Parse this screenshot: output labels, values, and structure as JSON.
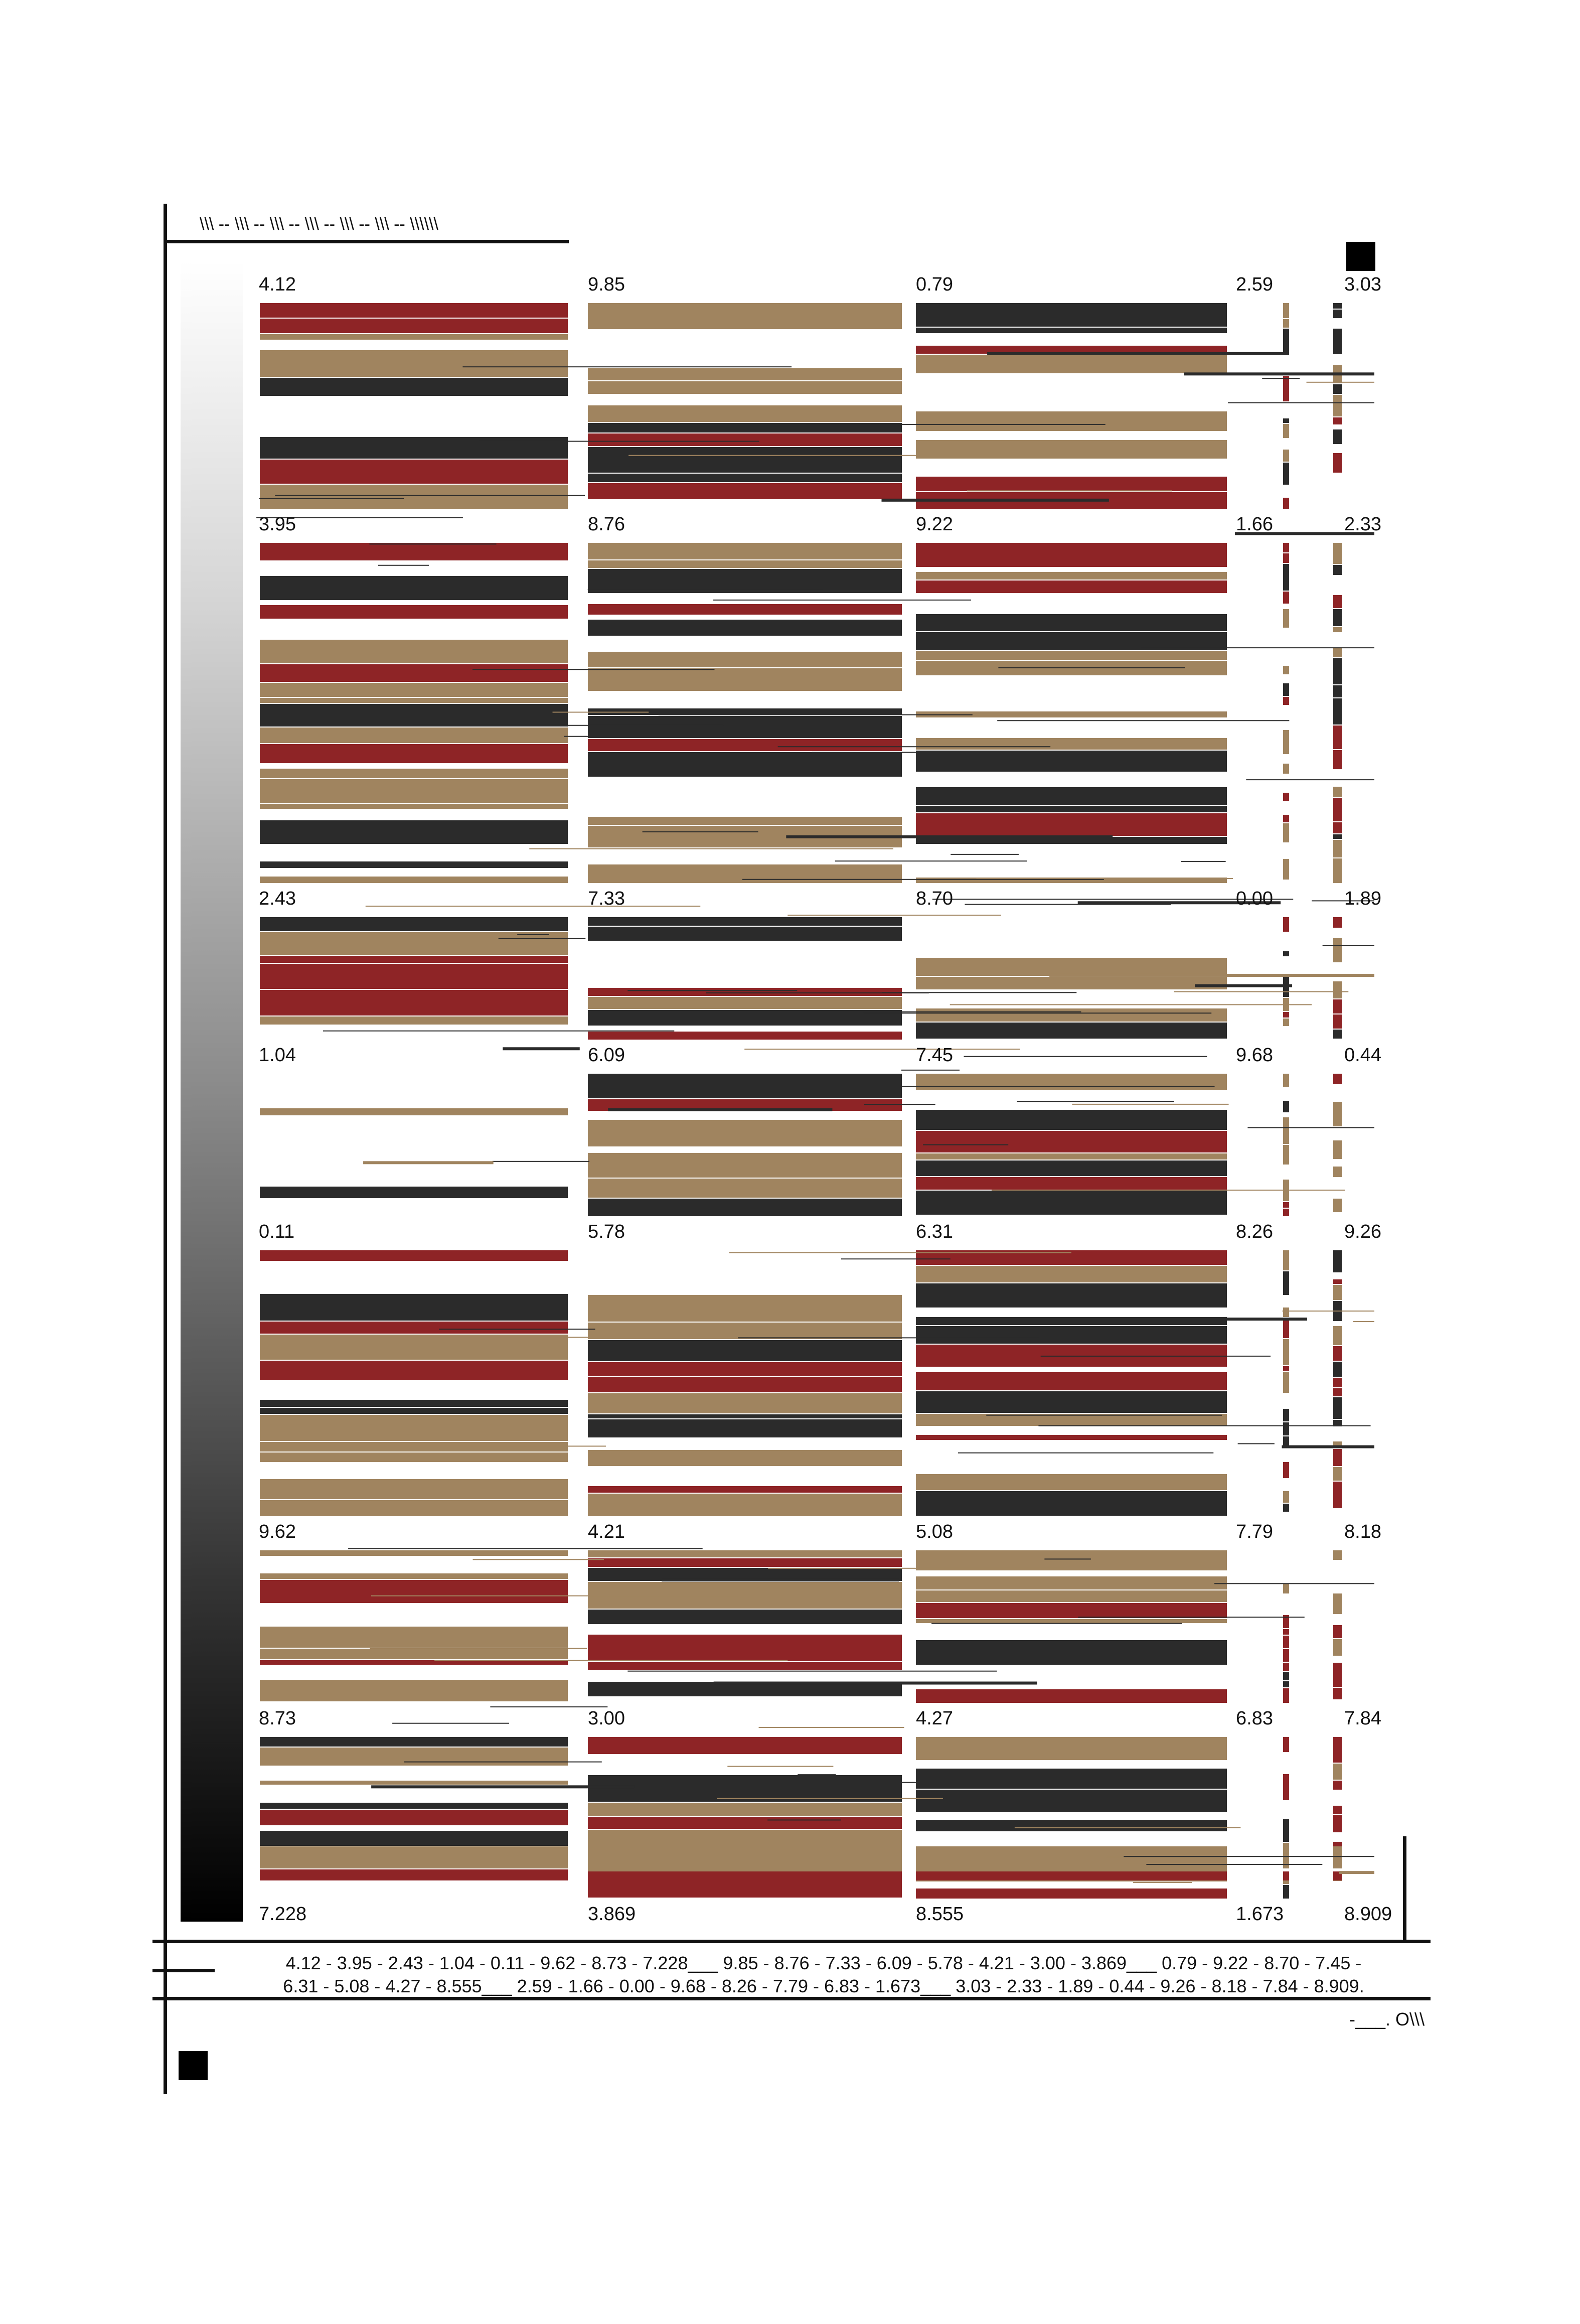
{
  "header_text": "\\\\\\ -- \\\\\\ -- \\\\\\ -- \\\\\\ -- \\\\\\ -- \\\\\\ -- \\\\\\\\\\\\",
  "signature": "-___. O\\\\\\",
  "summary_line_1": "4.12 - 3.95 - 2.43 - 1.04 - 0.11 - 9.62 - 8.73 - 7.228___ 9.85 - 8.76 - 7.33 - 6.09 - 5.78 - 4.21 - 3.00 - 3.869___ 0.79 - 9.22 - 8.70 - 7.45 -",
  "summary_line_2": "6.31 - 5.08 - 4.27 - 8.555___ 2.59 - 1.66 - 0.00 - 9.68 - 8.26 - 7.79 - 6.83 - 1.673___ 3.03 - 2.33 - 1.89 - 0.44 - 9.26 - 8.18 - 7.84 - 8.909.",
  "colors": {
    "red": "#8e2426",
    "tan": "#a0845f",
    "dark": "#2b2b2b",
    "ink": "#111111"
  },
  "columns": [
    {
      "values": [
        "4.12",
        "3.95",
        "2.43",
        "1.04",
        "0.11",
        "9.62",
        "8.73",
        "7.228"
      ]
    },
    {
      "values": [
        "9.85",
        "8.76",
        "7.33",
        "6.09",
        "5.78",
        "4.21",
        "3.00",
        "3.869"
      ]
    },
    {
      "values": [
        "0.79",
        "9.22",
        "8.70",
        "7.45",
        "6.31",
        "5.08",
        "4.27",
        "8.555"
      ]
    },
    {
      "values": [
        "2.59",
        "1.66",
        "0.00",
        "9.68",
        "8.26",
        "7.79",
        "6.83",
        "1.673"
      ]
    },
    {
      "values": [
        "3.03",
        "2.33",
        "1.89",
        "0.44",
        "9.26",
        "8.18",
        "7.84",
        "8.909"
      ]
    }
  ]
}
